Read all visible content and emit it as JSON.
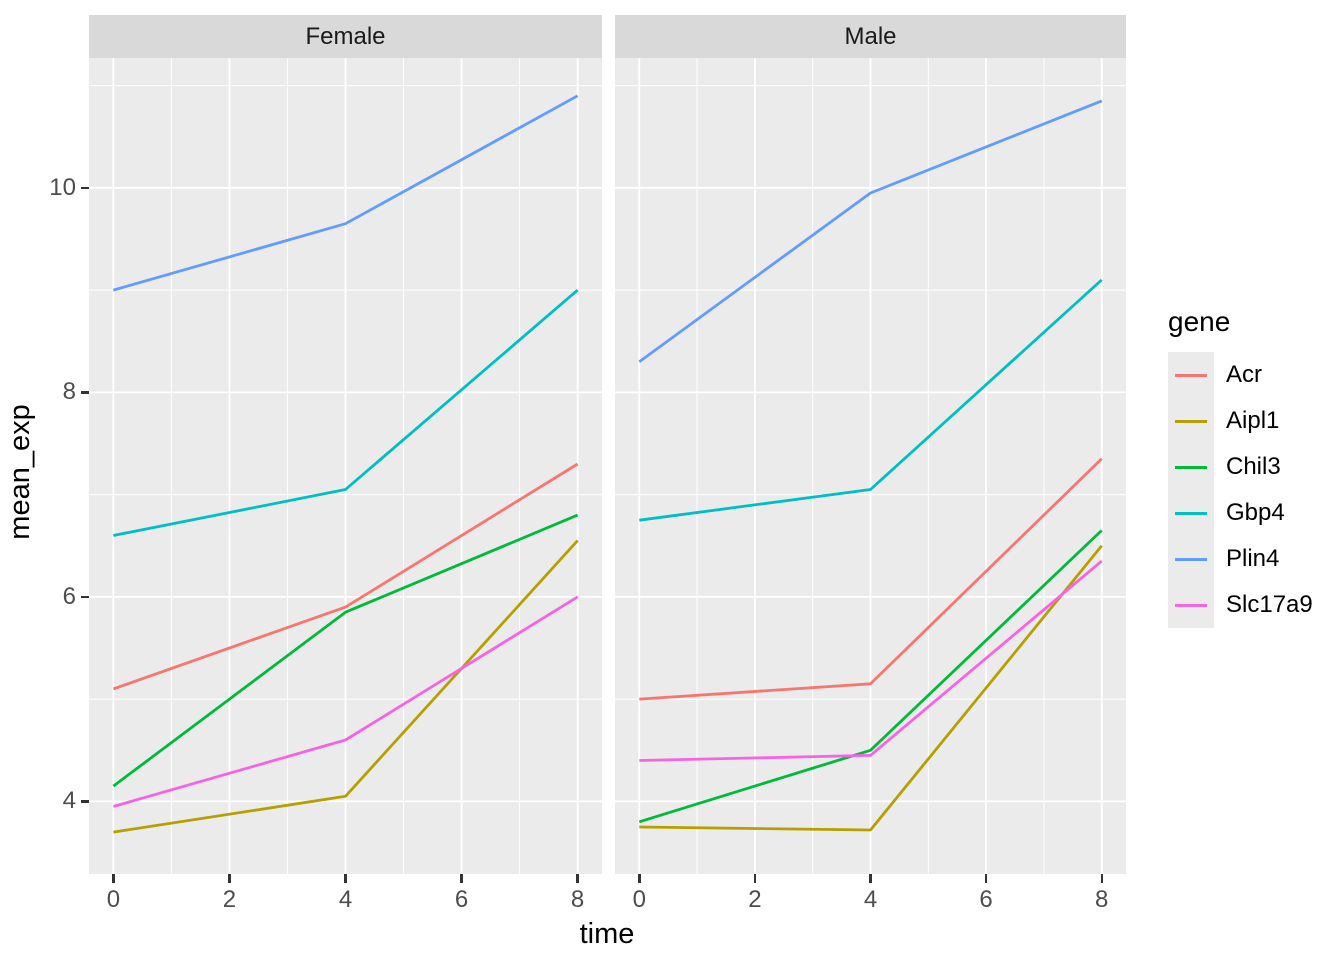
{
  "style": {
    "background": "#FFFFFF",
    "panel_bg": "#EBEBEB",
    "strip_bg": "#D9D9D9",
    "strip_text": "#1A1A1A",
    "grid": "#FFFFFF",
    "tick_text": "#4D4D4D",
    "tick_mark": "#333333",
    "axis_title": "#000000"
  },
  "chart_data": {
    "type": "line",
    "title": "",
    "xlabel": "time",
    "ylabel": "mean_exp",
    "legend_title": "gene",
    "faceting": {
      "facets": [
        "Female",
        "Male"
      ]
    },
    "x": [
      0,
      4,
      8
    ],
    "x_ticks": [
      0,
      2,
      4,
      6,
      8
    ],
    "x_minor_ticks": [
      1,
      3,
      5,
      7
    ],
    "y_ticks": [
      4,
      6,
      8,
      10
    ],
    "y_minor_ticks": [
      5,
      7,
      9,
      11
    ],
    "xlim": [
      -0.42,
      8.42
    ],
    "ylim": [
      3.29,
      11.27
    ],
    "grid": "on",
    "legend_position": "right",
    "series": [
      {
        "name": "Acr",
        "color": "#F8766D",
        "values": {
          "Female": [
            5.1,
            5.9,
            7.3
          ],
          "Male": [
            5.0,
            5.15,
            7.35
          ]
        }
      },
      {
        "name": "Aipl1",
        "color": "#B79F00",
        "values": {
          "Female": [
            3.7,
            4.05,
            6.55
          ],
          "Male": [
            3.75,
            3.72,
            6.5
          ]
        }
      },
      {
        "name": "Chil3",
        "color": "#00BA38",
        "values": {
          "Female": [
            4.15,
            5.85,
            6.8
          ],
          "Male": [
            3.8,
            4.5,
            6.65
          ]
        }
      },
      {
        "name": "Gbp4",
        "color": "#00BFC4",
        "values": {
          "Female": [
            6.6,
            7.05,
            9.0
          ],
          "Male": [
            6.75,
            7.05,
            9.1
          ]
        }
      },
      {
        "name": "Plin4",
        "color": "#619CFF",
        "values": {
          "Female": [
            9.0,
            9.65,
            10.9
          ],
          "Male": [
            8.3,
            9.95,
            10.85
          ]
        }
      },
      {
        "name": "Slc17a9",
        "color": "#F564E3",
        "values": {
          "Female": [
            3.95,
            4.6,
            6.0
          ],
          "Male": [
            4.4,
            4.45,
            6.35
          ]
        }
      }
    ]
  }
}
